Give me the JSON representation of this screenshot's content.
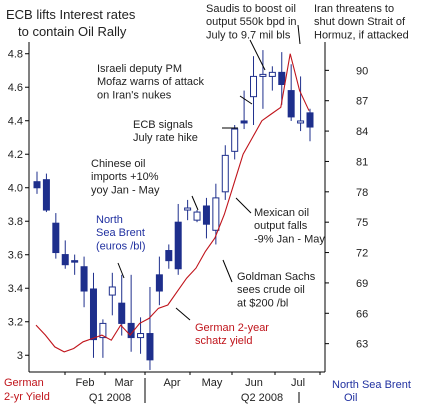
{
  "title": "ECB lifts Interest rates to contain Oil Rally",
  "left_axis_label": "German 2-yr Yield",
  "right_axis_label": "North Sea Brent Oil",
  "colors": {
    "candle": "#1e2f8c",
    "yield_line": "#c0141b",
    "text": "#222222",
    "blue_text": "#2030a0",
    "red_text": "#c0141b",
    "axis": "#000000"
  },
  "chart_data": {
    "type": "candlestick+line",
    "x_months": [
      "Feb",
      "Mar",
      "Apr",
      "May",
      "Jun",
      "Jul"
    ],
    "x_quarters": [
      "Q1 2008",
      "Q2 2008"
    ],
    "left_axis": {
      "label": "German 2-yr Yield",
      "ticks": [
        3.0,
        3.2,
        3.4,
        3.6,
        3.8,
        4.0,
        4.2,
        4.4,
        4.6,
        4.8
      ],
      "range": [
        2.9,
        4.87
      ]
    },
    "right_axis": {
      "label": "North Sea Brent Oil",
      "ticks": [
        63,
        66,
        69,
        72,
        75,
        78,
        81,
        84,
        87,
        90
      ],
      "range": [
        60.2,
        92.8
      ]
    },
    "brent_weekly": [
      {
        "x": "2008-01-04",
        "open": 79.0,
        "high": 80.0,
        "low": 77.8,
        "close": 78.4
      },
      {
        "x": "2008-01-11",
        "open": 79.2,
        "high": 79.8,
        "low": 76.0,
        "close": 76.2
      },
      {
        "x": "2008-01-18",
        "open": 74.9,
        "high": 75.9,
        "low": 71.4,
        "close": 72.0
      },
      {
        "x": "2008-01-25",
        "open": 71.8,
        "high": 73.2,
        "low": 70.4,
        "close": 70.8
      },
      {
        "x": "2008-02-01",
        "open": 71.2,
        "high": 71.8,
        "low": 69.8,
        "close": 71.1
      },
      {
        "x": "2008-02-08",
        "open": 70.6,
        "high": 71.6,
        "low": 66.6,
        "close": 68.2
      },
      {
        "x": "2008-02-15",
        "open": 68.4,
        "high": 70.0,
        "low": 61.6,
        "close": 63.4
      },
      {
        "x": "2008-02-22",
        "open": 63.6,
        "high": 65.4,
        "low": 61.6,
        "close": 65.0
      },
      {
        "x": "2008-02-29",
        "open": 67.8,
        "high": 70.0,
        "low": 65.8,
        "close": 68.6
      },
      {
        "x": "2008-03-07",
        "open": 67.0,
        "high": 69.8,
        "low": 63.8,
        "close": 65.0
      },
      {
        "x": "2008-03-14",
        "open": 65.0,
        "high": 69.8,
        "low": 62.2,
        "close": 63.6
      },
      {
        "x": "2008-03-21",
        "open": 63.6,
        "high": 65.6,
        "low": 62.0,
        "close": 64.0
      },
      {
        "x": "2008-03-28",
        "open": 64.0,
        "high": 68.6,
        "low": 60.4,
        "close": 61.4
      },
      {
        "x": "2008-04-04",
        "open": 69.8,
        "high": 71.6,
        "low": 66.8,
        "close": 68.2
      },
      {
        "x": "2008-04-11",
        "open": 72.2,
        "high": 72.8,
        "low": 70.4,
        "close": 71.2
      },
      {
        "x": "2008-04-18",
        "open": 75.0,
        "high": 76.8,
        "low": 69.8,
        "close": 70.4
      },
      {
        "x": "2008-04-25",
        "open": 76.2,
        "high": 77.2,
        "low": 75.2,
        "close": 76.4
      },
      {
        "x": "2008-05-02",
        "open": 75.2,
        "high": 76.2,
        "low": 75.0,
        "close": 76.0
      },
      {
        "x": "2008-05-09",
        "open": 76.6,
        "high": 77.4,
        "low": 73.4,
        "close": 74.8
      },
      {
        "x": "2008-05-16",
        "open": 74.2,
        "high": 78.8,
        "low": 72.8,
        "close": 77.4
      },
      {
        "x": "2008-05-23",
        "open": 78.0,
        "high": 82.6,
        "low": 77.2,
        "close": 81.6
      },
      {
        "x": "2008-05-30",
        "open": 82.0,
        "high": 84.6,
        "low": 81.2,
        "close": 84.2
      },
      {
        "x": "2008-06-06",
        "open": 85.0,
        "high": 88.0,
        "low": 84.2,
        "close": 84.8
      },
      {
        "x": "2008-06-13",
        "open": 87.4,
        "high": 91.4,
        "low": 84.6,
        "close": 89.4
      },
      {
        "x": "2008-06-20",
        "open": 89.4,
        "high": 92.0,
        "low": 86.2,
        "close": 89.6
      },
      {
        "x": "2008-06-27",
        "open": 89.4,
        "high": 90.4,
        "low": 88.0,
        "close": 89.8
      },
      {
        "x": "2008-07-04",
        "open": 89.8,
        "high": 91.8,
        "low": 86.6,
        "close": 88.6
      },
      {
        "x": "2008-07-11",
        "open": 88.0,
        "high": 90.6,
        "low": 85.0,
        "close": 85.4
      },
      {
        "x": "2008-07-18",
        "open": 84.8,
        "high": 89.4,
        "low": 84.0,
        "close": 85.0
      },
      {
        "x": "2008-07-25",
        "open": 85.8,
        "high": 86.2,
        "low": 83.0,
        "close": 84.4
      }
    ],
    "german_2yr_yield": {
      "x": [
        "2008-01-04",
        "2008-01-11",
        "2008-01-18",
        "2008-01-25",
        "2008-02-01",
        "2008-02-08",
        "2008-02-15",
        "2008-02-22",
        "2008-02-29",
        "2008-03-07",
        "2008-03-14",
        "2008-03-21",
        "2008-03-28",
        "2008-04-04",
        "2008-04-11",
        "2008-04-18",
        "2008-04-25",
        "2008-05-02",
        "2008-05-09",
        "2008-05-16",
        "2008-05-23",
        "2008-05-30",
        "2008-06-06",
        "2008-06-13",
        "2008-06-20",
        "2008-06-27",
        "2008-07-04",
        "2008-07-11",
        "2008-07-18",
        "2008-07-25"
      ],
      "values": [
        3.18,
        3.12,
        3.05,
        3.02,
        3.04,
        3.08,
        3.1,
        3.12,
        3.09,
        3.18,
        3.12,
        3.19,
        3.22,
        3.28,
        3.3,
        3.38,
        3.46,
        3.52,
        3.62,
        3.7,
        3.84,
        4.02,
        4.2,
        4.3,
        4.4,
        4.44,
        4.48,
        4.8,
        4.58,
        4.46
      ]
    },
    "annotations": [
      {
        "text": "Saudis to boost oil output 550k bpd in July to 9.7 mil bls"
      },
      {
        "text": "Iran threatens to shut down Strait of Hormuz, if attacked"
      },
      {
        "text": "Israeli deputy PM Mofaz warns of attack on Iran's nukes"
      },
      {
        "text": "ECB signals July rate hike"
      },
      {
        "text": "Chinese oil imports +10% yoy Jan - May"
      },
      {
        "text": "Mexican oil output falls -9% Jan - May"
      },
      {
        "text": "North Sea Brent (euros /bl)"
      },
      {
        "text": "Goldman Sachs sees crude oil at $200 /bl"
      },
      {
        "text": "German 2-year schatz yield"
      }
    ]
  }
}
